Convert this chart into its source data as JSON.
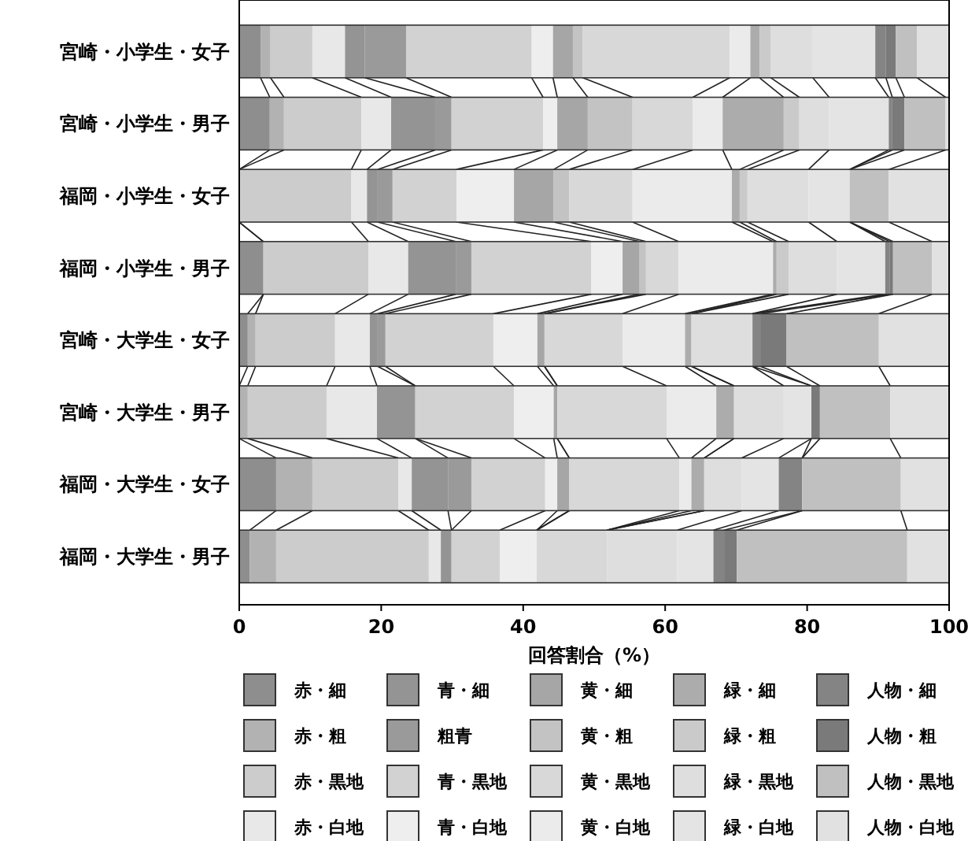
{
  "chart_data": {
    "type": "bar",
    "orientation": "horizontal",
    "stacked": true,
    "xlabel": "回答割合（%）",
    "categories": [
      "宮崎・小学生・女子",
      "宮崎・小学生・男子",
      "福岡・小学生・女子",
      "福岡・小学生・男子",
      "宮崎・大学生・女子",
      "宮崎・大学生・男子",
      "福岡・大学生・女子",
      "福岡・大学生・男子"
    ],
    "xlim": [
      0,
      100
    ],
    "xticks": [
      0,
      20,
      40,
      60,
      80,
      100
    ],
    "grid": false,
    "legend": "bottom",
    "series": [
      {
        "name": "赤・細",
        "color": "#8e8e8e",
        "values": [
          3.0,
          4.3,
          0,
          3.4,
          1.2,
          0,
          5.2,
          1.5
        ]
      },
      {
        "name": "赤・粗",
        "color": "#b2b2b2",
        "values": [
          1.4,
          2.0,
          0,
          0,
          1.1,
          1.2,
          5.1,
          3.7
        ]
      },
      {
        "name": "赤・黒地",
        "color": "#cccccc",
        "values": [
          5.9,
          10.9,
          15.8,
          14.8,
          11.2,
          11.1,
          12.1,
          21.5
        ]
      },
      {
        "name": "赤・白地",
        "color": "#e8e8e8",
        "values": [
          4.6,
          4.2,
          2.2,
          5.6,
          4.9,
          7.1,
          1.9,
          1.7
        ]
      },
      {
        "name": "青・細",
        "color": "#949494",
        "values": [
          2.8,
          6.2,
          1.5,
          6.7,
          1.1,
          5.4,
          5.1,
          1.5
        ]
      },
      {
        "name": "粗青",
        "color": "#9a9a9a",
        "values": [
          5.8,
          2.3,
          2.1,
          2.2,
          1.1,
          0,
          3.3,
          0
        ]
      },
      {
        "name": "青・黒地",
        "color": "#d2d2d2",
        "values": [
          17.7,
          12.9,
          9.0,
          16.9,
          15.2,
          13.9,
          10.4,
          6.8
        ]
      },
      {
        "name": "青・白地",
        "color": "#eeeeee",
        "values": [
          3.0,
          2.0,
          8.1,
          4.4,
          6.2,
          5.6,
          1.7,
          5.2
        ]
      },
      {
        "name": "黄・細",
        "color": "#a6a6a6",
        "values": [
          2.8,
          4.3,
          5.6,
          2.4,
          1.0,
          0.5,
          1.7,
          0
        ]
      },
      {
        "name": "黄・粗",
        "color": "#c3c3c3",
        "values": [
          1.4,
          6.3,
          2.2,
          0.9,
          0,
          0,
          0,
          0
        ]
      },
      {
        "name": "黄・黒地",
        "color": "#d8d8d8",
        "values": [
          20.7,
          8.5,
          8.9,
          4.6,
          11.0,
          15.4,
          15.5,
          9.9
        ]
      },
      {
        "name": "黄・白地",
        "color": "#ebebeb",
        "values": [
          2.9,
          4.2,
          14.0,
          13.3,
          8.8,
          7.0,
          1.7,
          0
        ]
      },
      {
        "name": "緑・細",
        "color": "#acacac",
        "values": [
          1.3,
          8.6,
          1.1,
          0.5,
          0.9,
          2.5,
          1.8,
          0
        ]
      },
      {
        "name": "緑・粗",
        "color": "#cacaca",
        "values": [
          1.6,
          2.2,
          1.1,
          1.7,
          0,
          0,
          0,
          0
        ]
      },
      {
        "name": "緑・黒地",
        "color": "#dedede",
        "values": [
          5.9,
          4.2,
          8.6,
          6.8,
          8.6,
          7.0,
          5.3,
          9.9
        ]
      },
      {
        "name": "緑・白地",
        "color": "#e4e4e4",
        "values": [
          8.8,
          8.4,
          5.8,
          6.8,
          0,
          3.9,
          5.2,
          5.1
        ]
      },
      {
        "name": "人物・細",
        "color": "#848484",
        "values": [
          1.5,
          0.5,
          0,
          0.6,
          1.1,
          0,
          3.3,
          1.5
        ]
      },
      {
        "name": "人物・粗",
        "color": "#7a7a7a",
        "values": [
          1.4,
          1.7,
          0,
          0.5,
          3.7,
          1.2,
          0,
          1.8
        ]
      },
      {
        "name": "人物・黒地",
        "color": "#c0c0c0",
        "values": [
          3.0,
          5.8,
          5.5,
          5.5,
          13.0,
          9.9,
          13.9,
          24.0
        ]
      },
      {
        "name": "人物・白地",
        "color": "#e1e1e1",
        "values": [
          4.5,
          0.5,
          8.5,
          2.4,
          9.9,
          8.3,
          6.8,
          5.9
        ]
      }
    ]
  }
}
